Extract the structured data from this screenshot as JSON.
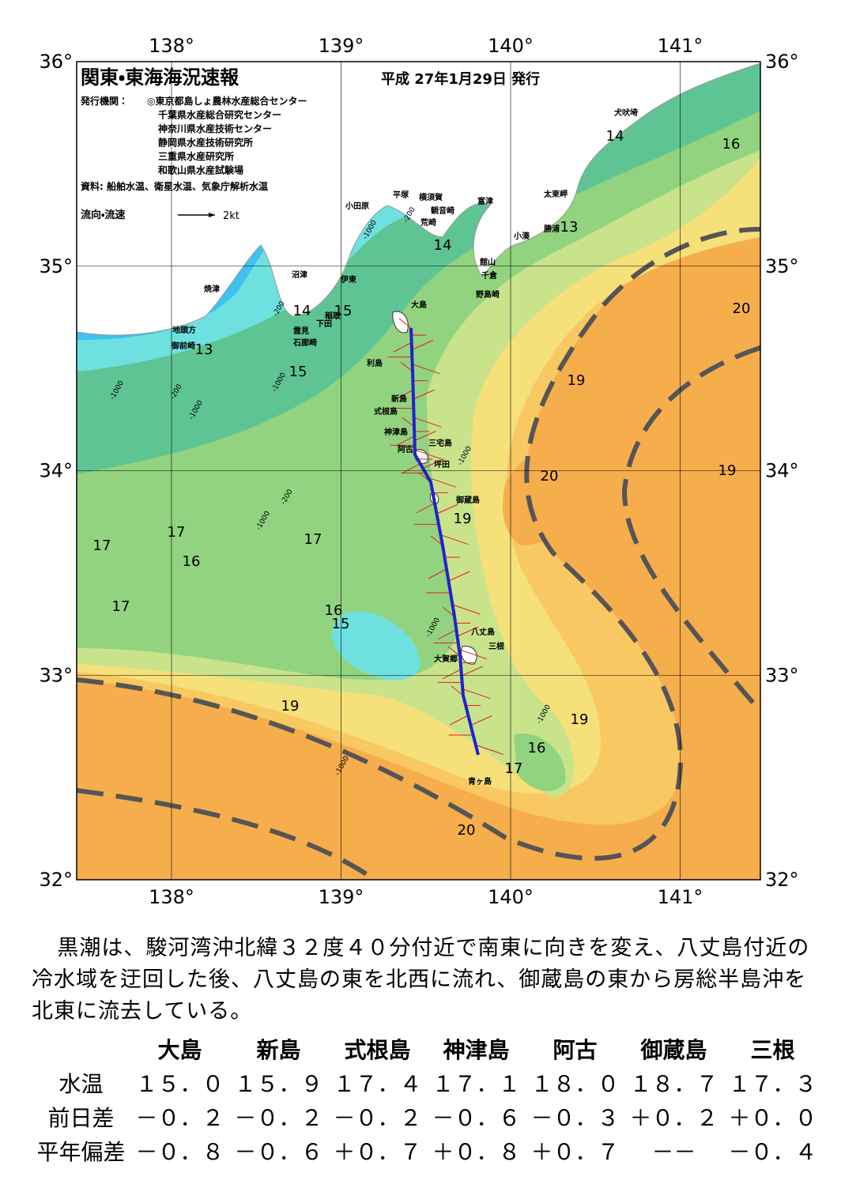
{
  "map": {
    "title": "関東・東海海況速報",
    "date": "平成 27年1月29日 発行",
    "issuers_label": "発行機関：",
    "issuers": [
      "◎東京都島しょ農林水産総合センター",
      "千葉県水産総合研究センター",
      "神奈川県水産技術センター",
      "静岡県水産技術研究所",
      "三重県水産研究所",
      "和歌山県水産試験場"
    ],
    "source": "資料: 船舶水温、衛星水温、気象庁解析水温",
    "legend_label": "流向・流速",
    "legend_scale": "2kt",
    "lon_ticks": [
      {
        "value": 138,
        "label": "138°"
      },
      {
        "value": 139,
        "label": "139°"
      },
      {
        "value": 140,
        "label": "140°"
      },
      {
        "value": 141,
        "label": "141°"
      }
    ],
    "lat_ticks": [
      {
        "value": 36,
        "label": "36°"
      },
      {
        "value": 35,
        "label": "35°"
      },
      {
        "value": 34,
        "label": "34°"
      },
      {
        "value": 33,
        "label": "33°"
      },
      {
        "value": 32,
        "label": "32°"
      }
    ],
    "places": [
      "犬吠埼",
      "太東岬",
      "勝浦",
      "小湊",
      "富津",
      "横須賀",
      "観音崎",
      "平塚",
      "小田原",
      "荒崎",
      "館山",
      "千倉",
      "野島崎",
      "沼津",
      "伊東",
      "稲取",
      "下田",
      "雲見",
      "石廊崎",
      "焼津",
      "地頭方",
      "御前崎",
      "大島",
      "利島",
      "新島",
      "式根島",
      "神津島",
      "三宅島",
      "阿古",
      "坪田",
      "御蔵島",
      "八丈島",
      "三根",
      "大賀郷",
      "青ヶ島"
    ],
    "isotherm_labels": [
      "14",
      "16",
      "13",
      "14",
      "14",
      "15",
      "13",
      "15",
      "20",
      "19",
      "20",
      "19",
      "19",
      "17",
      "17",
      "16",
      "17",
      "17",
      "16",
      "15",
      "19",
      "19",
      "16",
      "17",
      "20"
    ],
    "depth_labels": [
      "-200",
      "-1000",
      "-200",
      "-1000",
      "-200",
      "-1000",
      "-1000",
      "-200",
      "-1000",
      "-1000",
      "-1000",
      "-1000",
      "-1000"
    ]
  },
  "summary": "黒潮は、駿河湾沖北緯３２度４０分付近で南東に向きを変え、八丈島付近の冷水域を迂回した後、八丈島の東を北西に流れ、御蔵島の東から房総半島沖を北東に流去している。",
  "table": {
    "columns": [
      "大島",
      "新島",
      "式根島",
      "神津島",
      "阿古",
      "御蔵島",
      "三根"
    ],
    "rows": [
      [
        "水温",
        "１５．０",
        "１５．９",
        "１７．４",
        "１７．１",
        "１８．０",
        "１８．７",
        "１７．３"
      ],
      [
        "前日差",
        "－０．２",
        "－０．２",
        "－０．２",
        "－０．６",
        "－０．３",
        "＋０．２",
        "＋０．０"
      ],
      [
        "平年偏差",
        "－０．８",
        "－０．６",
        "＋０．７",
        "＋０．８",
        "＋０．７",
        "－－",
        "－０．４"
      ]
    ]
  }
}
